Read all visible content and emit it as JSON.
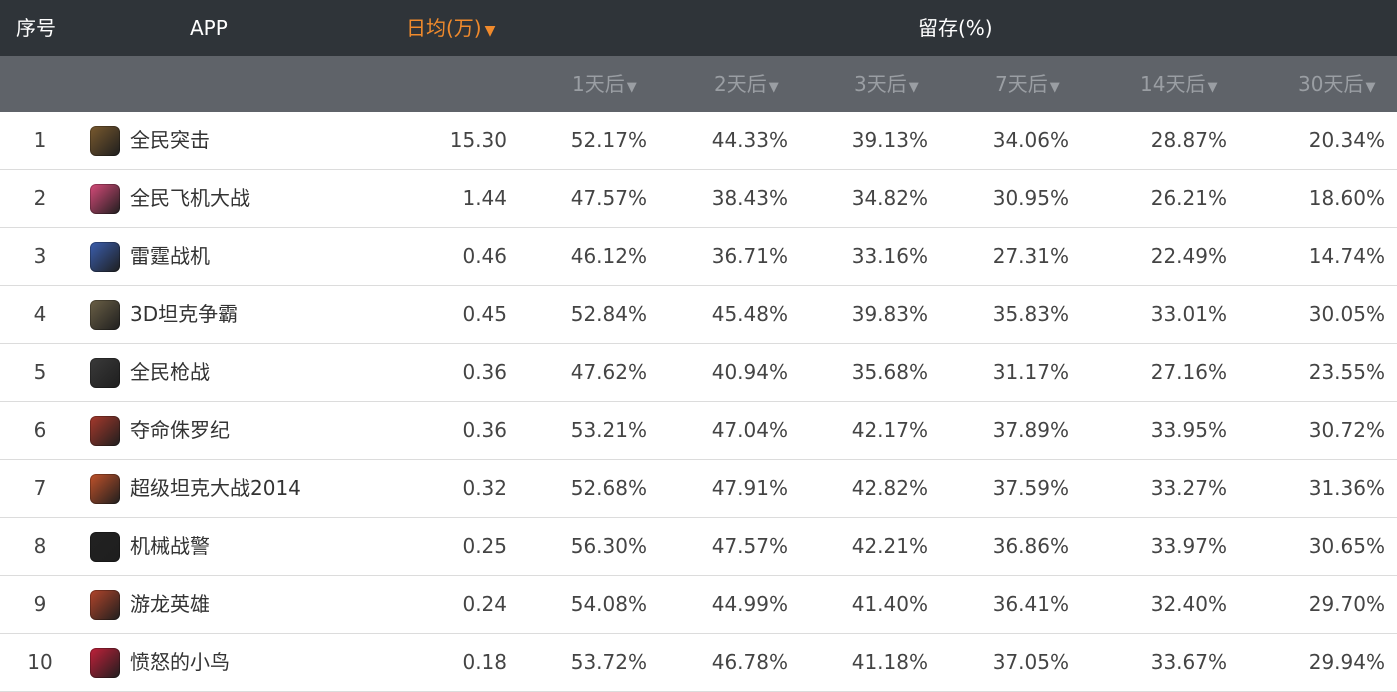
{
  "header": {
    "rank": "序号",
    "app": "APP",
    "daily": "日均(万)",
    "daily_arrow": "▼",
    "retention": "留存(%)",
    "sort_arrow": "▼",
    "sub": [
      "1天后",
      "2天后",
      "3天后",
      "7天后",
      "14天后",
      "30天后"
    ]
  },
  "rows": [
    {
      "rank": "1",
      "name": "全民突击",
      "daily": "15.30",
      "r1": "52.17%",
      "r2": "44.33%",
      "r3": "39.13%",
      "r7": "34.06%",
      "r14": "28.87%",
      "r30": "20.34%",
      "icon_color": "#7a5a2e"
    },
    {
      "rank": "2",
      "name": "全民飞机大战",
      "daily": "1.44",
      "r1": "47.57%",
      "r2": "38.43%",
      "r3": "34.82%",
      "r7": "30.95%",
      "r14": "26.21%",
      "r30": "18.60%",
      "icon_color": "#d84b7a"
    },
    {
      "rank": "3",
      "name": "雷霆战机",
      "daily": "0.46",
      "r1": "46.12%",
      "r2": "36.71%",
      "r3": "33.16%",
      "r7": "27.31%",
      "r14": "22.49%",
      "r30": "14.74%",
      "icon_color": "#3b5fb0"
    },
    {
      "rank": "4",
      "name": "3D坦克争霸",
      "daily": "0.45",
      "r1": "52.84%",
      "r2": "45.48%",
      "r3": "39.83%",
      "r7": "35.83%",
      "r14": "33.01%",
      "r30": "30.05%",
      "icon_color": "#6b6046"
    },
    {
      "rank": "5",
      "name": "全民枪战",
      "daily": "0.36",
      "r1": "47.62%",
      "r2": "40.94%",
      "r3": "35.68%",
      "r7": "31.17%",
      "r14": "27.16%",
      "r30": "23.55%",
      "icon_color": "#3a3a3a"
    },
    {
      "rank": "6",
      "name": "夺命侏罗纪",
      "daily": "0.36",
      "r1": "53.21%",
      "r2": "47.04%",
      "r3": "42.17%",
      "r7": "37.89%",
      "r14": "33.95%",
      "r30": "30.72%",
      "icon_color": "#a8392c"
    },
    {
      "rank": "7",
      "name": "超级坦克大战2014",
      "daily": "0.32",
      "r1": "52.68%",
      "r2": "47.91%",
      "r3": "42.82%",
      "r7": "37.59%",
      "r14": "33.27%",
      "r30": "31.36%",
      "icon_color": "#c2522a"
    },
    {
      "rank": "8",
      "name": "机械战警",
      "daily": "0.25",
      "r1": "56.30%",
      "r2": "47.57%",
      "r3": "42.21%",
      "r7": "36.86%",
      "r14": "33.97%",
      "r30": "30.65%",
      "icon_color": "#222222"
    },
    {
      "rank": "9",
      "name": "游龙英雄",
      "daily": "0.24",
      "r1": "54.08%",
      "r2": "44.99%",
      "r3": "41.40%",
      "r7": "36.41%",
      "r14": "32.40%",
      "r30": "29.70%",
      "icon_color": "#b3452b"
    },
    {
      "rank": "10",
      "name": "愤怒的小鸟",
      "daily": "0.18",
      "r1": "53.72%",
      "r2": "46.78%",
      "r3": "41.18%",
      "r7": "37.05%",
      "r14": "33.67%",
      "r30": "29.94%",
      "icon_color": "#c2203a"
    }
  ]
}
